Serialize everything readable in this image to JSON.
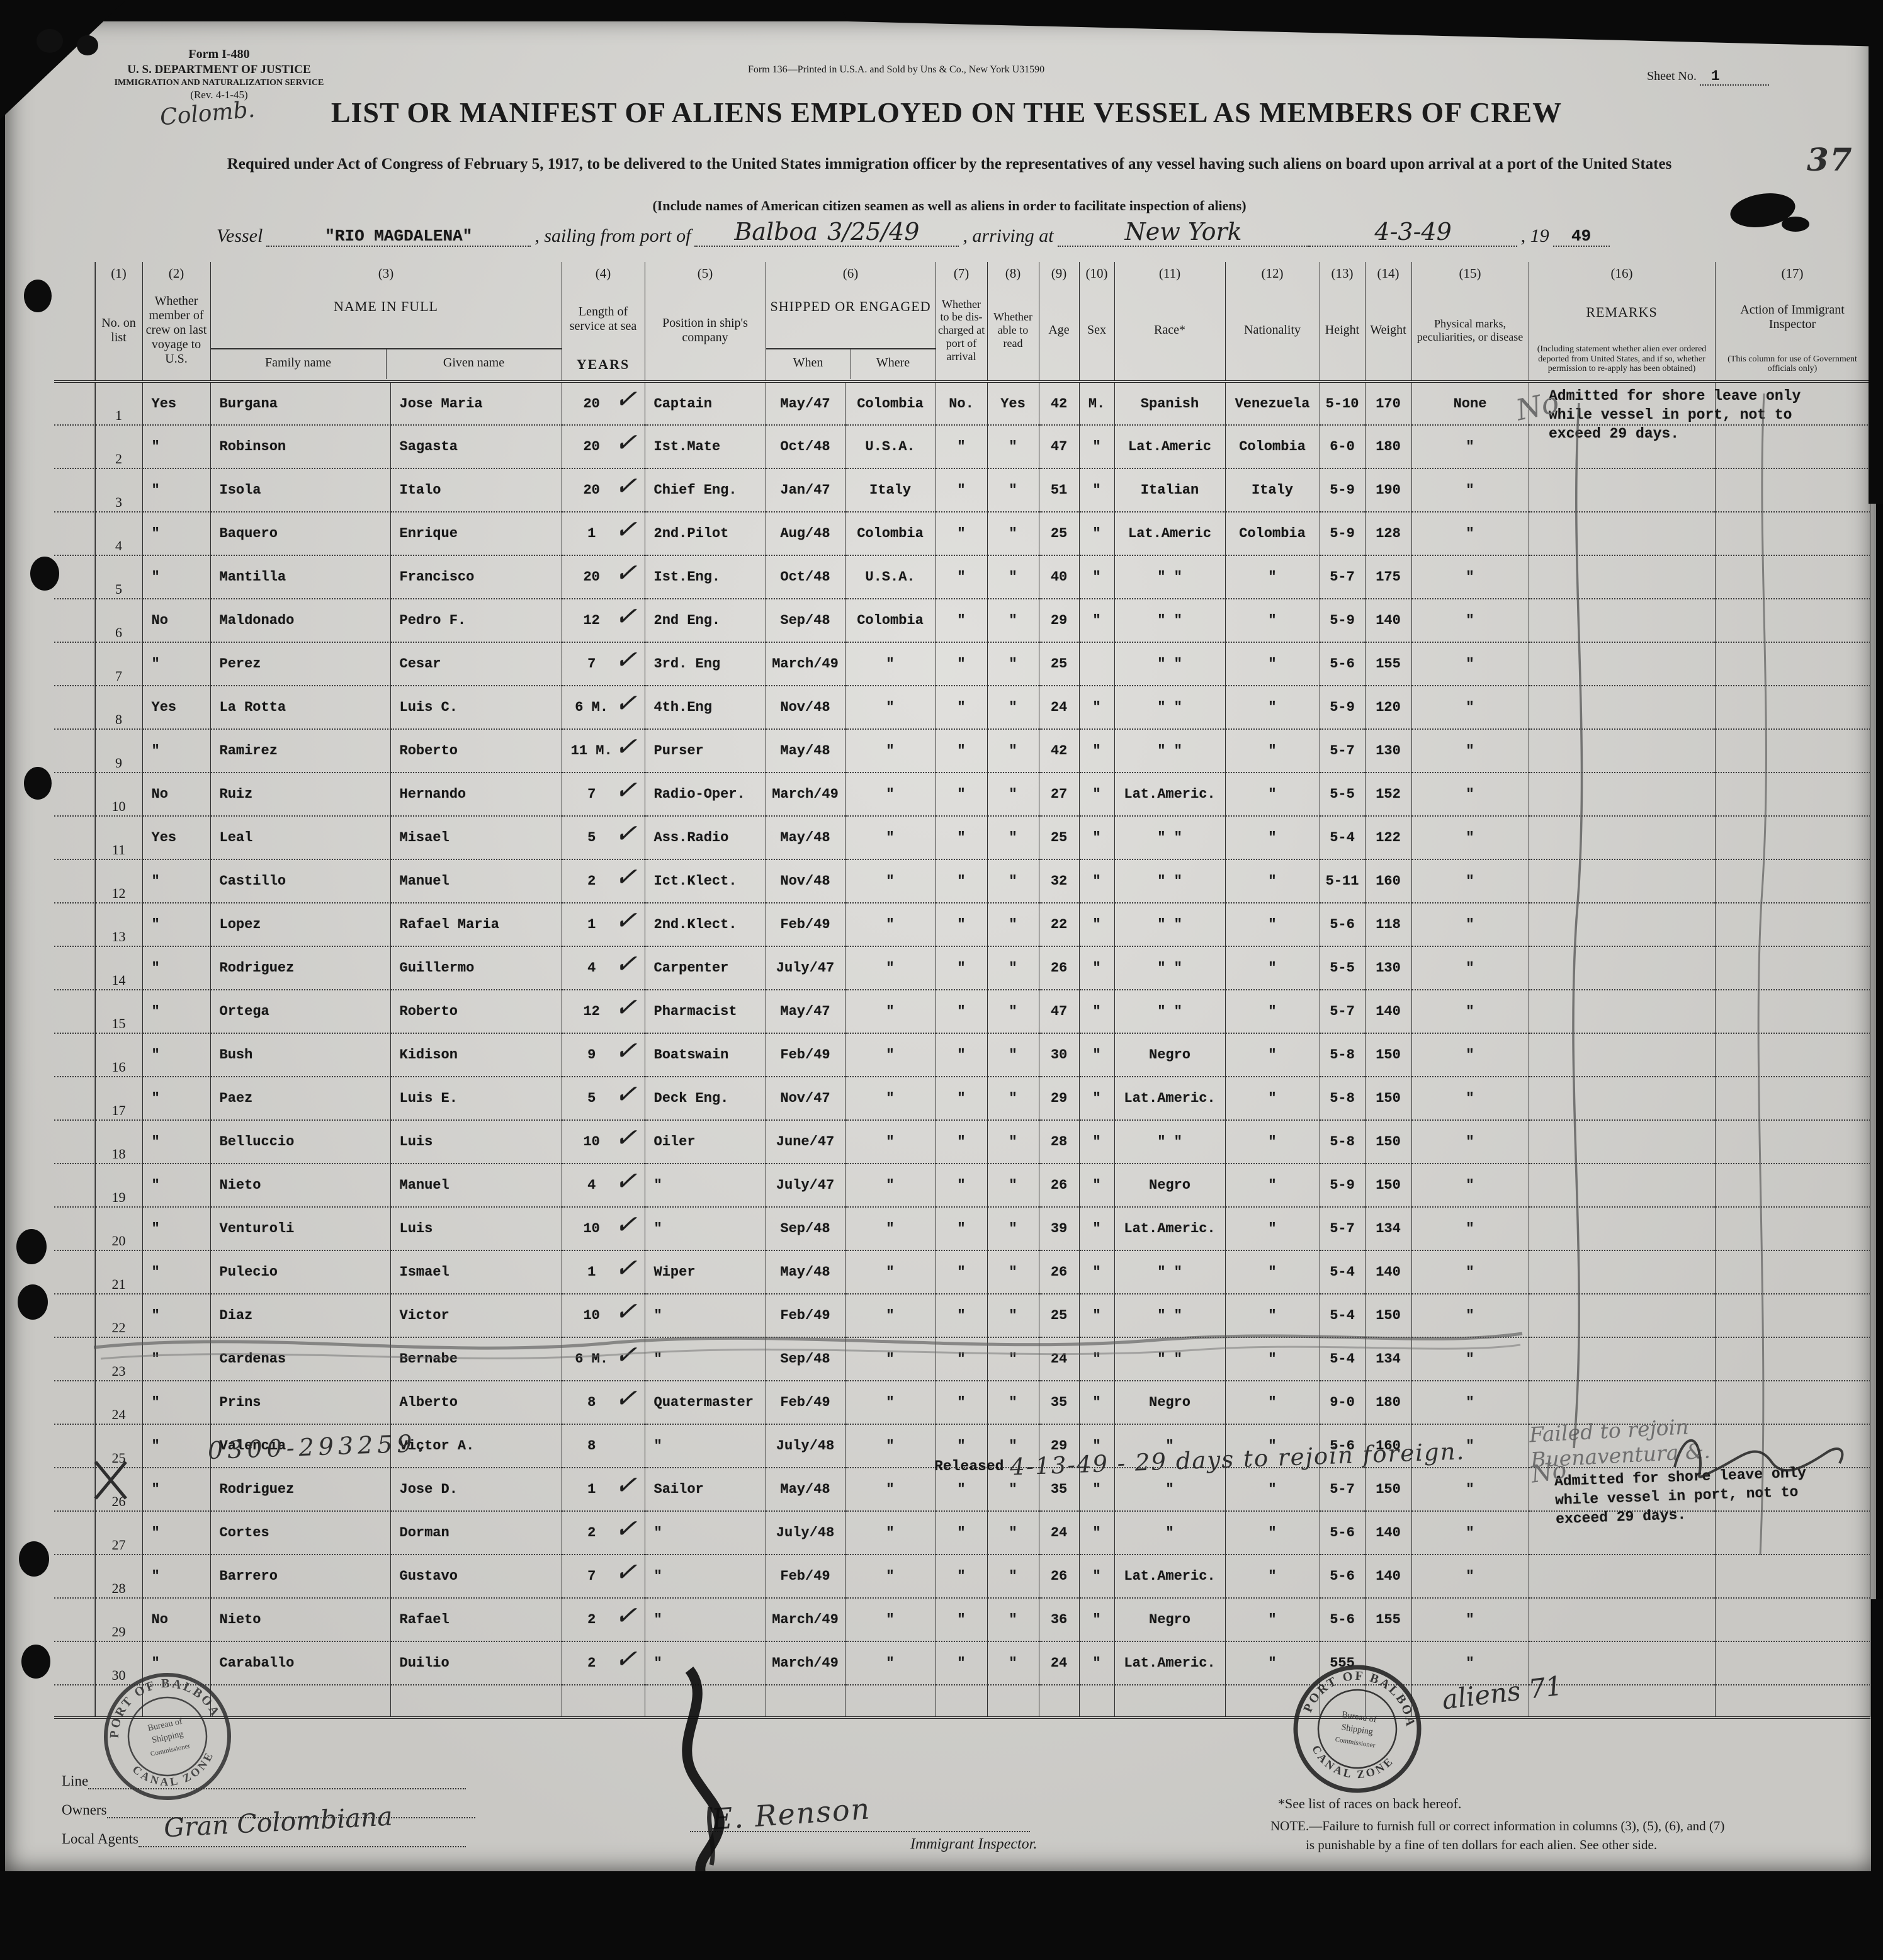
{
  "form": {
    "form_no": "Form I-480",
    "agency_line1": "U. S. DEPARTMENT OF JUSTICE",
    "agency_line2": "IMMIGRATION AND NATURALIZATION SERVICE",
    "agency_line3": "(Rev. 4-1-45)",
    "printer_note": "Form 136—Printed in U.S.A. and Sold by Uns & Co., New York   U31590",
    "sheet_label": "Sheet No.",
    "sheet_value": "1",
    "page_number": "37",
    "title": "LIST OR MANIFEST OF ALIENS EMPLOYED ON THE VESSEL AS MEMBERS OF CREW",
    "subtitle": "Required under Act of Congress of February 5, 1917, to be delivered to the United States immigration officer by the representatives of any vessel having such aliens on board upon arrival at a port of the United States",
    "subtitle2": "(Include names of American citizen seamen as well as aliens in order to facilitate inspection of aliens)"
  },
  "vessel_line": {
    "vessel_label": "Vessel",
    "vessel_annotation": "Colomb.",
    "vessel_name": "\"RIO MAGDALENA\"",
    "sailing_label": ", sailing from port of",
    "sailing_port": "Balboa",
    "sailing_date": "3/25/49",
    "arriving_label": ", arriving at",
    "arrival_port": "New York",
    "arrival_date": "4-3-49",
    "year_prefix": ", 19",
    "year_value": "49"
  },
  "table": {
    "headers": {
      "c1": {
        "num": "(1)",
        "label": "No. on list"
      },
      "c2": {
        "num": "(2)",
        "label": "Whether member of crew on last voyage to U.S."
      },
      "c3": {
        "num": "(3)",
        "label": "NAME IN FULL",
        "sub1": "Family name",
        "sub2": "Given name"
      },
      "c4": {
        "num": "(4)",
        "label": "Length of service at sea",
        "sub": "YEARS"
      },
      "c5": {
        "num": "(5)",
        "label": "Position in ship's company"
      },
      "c6": {
        "num": "(6)",
        "label": "SHIPPED OR ENGAGED",
        "sub1": "When",
        "sub2": "Where"
      },
      "c7": {
        "num": "(7)",
        "label": "Whether to be dis- charged at port of arrival"
      },
      "c8": {
        "num": "(8)",
        "label": "Whether able to read"
      },
      "c9": {
        "num": "(9)",
        "label": "Age"
      },
      "c10": {
        "num": "(10)",
        "label": "Sex"
      },
      "c11": {
        "num": "(11)",
        "label": "Race*"
      },
      "c12": {
        "num": "(12)",
        "label": "Nationality"
      },
      "c13": {
        "num": "(13)",
        "label": "Height"
      },
      "c14": {
        "num": "(14)",
        "label": "Weight"
      },
      "c15": {
        "num": "(15)",
        "label": "Physical marks, peculiarities, or disease"
      },
      "c16": {
        "num": "(16)",
        "label": "REMARKS",
        "sublabel": "(Including statement whether alien ever ordered deported from United States, and if so, whether permission to re-apply has been obtained)"
      },
      "c17": {
        "num": "(17)",
        "label": "Action of Immigrant Inspector",
        "sublabel": "(This column for use of Government officials only)"
      }
    },
    "rows": [
      {
        "num": "1",
        "mem": "Yes",
        "fam": "Burgana",
        "giv": "Jose Maria",
        "svc": "20",
        "chk": "✓",
        "pos": "Captain",
        "when": "May/47",
        "where": "Colombia",
        "dis": "No.",
        "read": "Yes",
        "age": "42",
        "sex": "M.",
        "race": "Spanish",
        "nat": "Venezuela",
        "ht": "5-10",
        "wt": "170",
        "marks": "None"
      },
      {
        "num": "2",
        "mem": "\"",
        "fam": "Robinson",
        "giv": "Sagasta",
        "svc": "20",
        "chk": "✓",
        "pos": "Ist.Mate",
        "when": "Oct/48",
        "where": "U.S.A.",
        "dis": "\"",
        "read": "\"",
        "age": "47",
        "sex": "\"",
        "race": "Lat.Americ",
        "nat": "Colombia",
        "ht": "6-0",
        "wt": "180",
        "marks": "\""
      },
      {
        "num": "3",
        "mem": "\"",
        "fam": "Isola",
        "giv": "Italo",
        "svc": "20",
        "chk": "✓",
        "pos": "Chief Eng.",
        "when": "Jan/47",
        "where": "Italy",
        "dis": "\"",
        "read": "\"",
        "age": "51",
        "sex": "\"",
        "race": "Italian",
        "nat": "Italy",
        "ht": "5-9",
        "wt": "190",
        "marks": "\""
      },
      {
        "num": "4",
        "mem": "\"",
        "fam": "Baquero",
        "giv": "Enrique",
        "svc": "1",
        "chk": "✓",
        "pos": "2nd.Pilot",
        "when": "Aug/48",
        "where": "Colombia",
        "dis": "\"",
        "read": "\"",
        "age": "25",
        "sex": "\"",
        "race": "Lat.Americ",
        "nat": "Colombia",
        "ht": "5-9",
        "wt": "128",
        "marks": "\""
      },
      {
        "num": "5",
        "mem": "\"",
        "fam": "Mantilla",
        "giv": "Francisco",
        "svc": "20",
        "chk": "✓",
        "pos": "Ist.Eng.",
        "when": "Oct/48",
        "where": "U.S.A.",
        "dis": "\"",
        "read": "\"",
        "age": "40",
        "sex": "\"",
        "race": "\"  \"",
        "nat": "\"",
        "ht": "5-7",
        "wt": "175",
        "marks": "\""
      },
      {
        "num": "6",
        "mem": "No",
        "fam": "Maldonado",
        "giv": "Pedro F.",
        "svc": "12",
        "chk": "✓",
        "pos": "2nd Eng.",
        "when": "Sep/48",
        "where": "Colombia",
        "dis": "\"",
        "read": "\"",
        "age": "29",
        "sex": "\"",
        "race": "\"  \"",
        "nat": "\"",
        "ht": "5-9",
        "wt": "140",
        "marks": "\""
      },
      {
        "num": "7",
        "mem": "\"",
        "fam": "Perez",
        "giv": "Cesar",
        "svc": "7",
        "chk": "✓",
        "pos": "3rd. Eng",
        "when": "March/49",
        "where": "\"",
        "dis": "\"",
        "read": "\"",
        "age": "25",
        "sex": "",
        "race": "\"  \"",
        "nat": "\"",
        "ht": "5-6",
        "wt": "155",
        "marks": "\""
      },
      {
        "num": "8",
        "mem": "Yes",
        "fam": "La Rotta",
        "giv": "Luis C.",
        "svc": "6 M.",
        "chk": "✓",
        "pos": "4th.Eng",
        "when": "Nov/48",
        "where": "\"",
        "dis": "\"",
        "read": "\"",
        "age": "24",
        "sex": "\"",
        "race": "\"  \"",
        "nat": "\"",
        "ht": "5-9",
        "wt": "120",
        "marks": "\""
      },
      {
        "num": "9",
        "mem": "\"",
        "fam": "Ramirez",
        "giv": "Roberto",
        "svc": "11 M.",
        "chk": "✓",
        "pos": "Purser",
        "when": "May/48",
        "where": "\"",
        "dis": "\"",
        "read": "\"",
        "age": "42",
        "sex": "\"",
        "race": "\"  \"",
        "nat": "\"",
        "ht": "5-7",
        "wt": "130",
        "marks": "\""
      },
      {
        "num": "10",
        "mem": "No",
        "fam": "Ruiz",
        "giv": "Hernando",
        "svc": "7",
        "chk": "✓",
        "pos": "Radio-Oper.",
        "when": "March/49",
        "where": "\"",
        "dis": "\"",
        "read": "\"",
        "age": "27",
        "sex": "\"",
        "race": "Lat.Americ.",
        "nat": "\"",
        "ht": "5-5",
        "wt": "152",
        "marks": "\""
      },
      {
        "num": "11",
        "mem": "Yes",
        "fam": "Leal",
        "giv": "Misael",
        "svc": "5",
        "chk": "✓",
        "pos": "Ass.Radio",
        "when": "May/48",
        "where": "\"",
        "dis": "\"",
        "read": "\"",
        "age": "25",
        "sex": "\"",
        "race": "\"  \"",
        "nat": "\"",
        "ht": "5-4",
        "wt": "122",
        "marks": "\""
      },
      {
        "num": "12",
        "mem": "\"",
        "fam": "Castillo",
        "giv": "Manuel",
        "svc": "2",
        "chk": "✓",
        "pos": "Ict.Klect.",
        "when": "Nov/48",
        "where": "\"",
        "dis": "\"",
        "read": "\"",
        "age": "32",
        "sex": "\"",
        "race": "\"  \"",
        "nat": "\"",
        "ht": "5-11",
        "wt": "160",
        "marks": "\""
      },
      {
        "num": "13",
        "mem": "\"",
        "fam": "Lopez",
        "giv": "Rafael Maria",
        "svc": "1",
        "chk": "✓",
        "pos": "2nd.Klect.",
        "when": "Feb/49",
        "where": "\"",
        "dis": "\"",
        "read": "\"",
        "age": "22",
        "sex": "\"",
        "race": "\"  \"",
        "nat": "\"",
        "ht": "5-6",
        "wt": "118",
        "marks": "\""
      },
      {
        "num": "14",
        "mem": "\"",
        "fam": "Rodriguez",
        "giv": "Guillermo",
        "svc": "4",
        "chk": "✓",
        "pos": "Carpenter",
        "when": "July/47",
        "where": "\"",
        "dis": "\"",
        "read": "\"",
        "age": "26",
        "sex": "\"",
        "race": "\"  \"",
        "nat": "\"",
        "ht": "5-5",
        "wt": "130",
        "marks": "\""
      },
      {
        "num": "15",
        "mem": "\"",
        "fam": "Ortega",
        "giv": "Roberto",
        "svc": "12",
        "chk": "✓",
        "pos": "Pharmacist",
        "when": "May/47",
        "where": "\"",
        "dis": "\"",
        "read": "\"",
        "age": "47",
        "sex": "\"",
        "race": "\"  \"",
        "nat": "\"",
        "ht": "5-7",
        "wt": "140",
        "marks": "\""
      },
      {
        "num": "16",
        "mem": "\"",
        "fam": "Bush",
        "giv": "Kidison",
        "svc": "9",
        "chk": "✓",
        "pos": "Boatswain",
        "when": "Feb/49",
        "where": "\"",
        "dis": "\"",
        "read": "\"",
        "age": "30",
        "sex": "\"",
        "race": "Negro",
        "nat": "\"",
        "ht": "5-8",
        "wt": "150",
        "marks": "\""
      },
      {
        "num": "17",
        "mem": "\"",
        "fam": "Paez",
        "giv": "Luis E.",
        "svc": "5",
        "chk": "✓",
        "pos": "Deck Eng.",
        "when": "Nov/47",
        "where": "\"",
        "dis": "\"",
        "read": "\"",
        "age": "29",
        "sex": "\"",
        "race": "Lat.Americ.",
        "nat": "\"",
        "ht": "5-8",
        "wt": "150",
        "marks": "\""
      },
      {
        "num": "18",
        "mem": "\"",
        "fam": "Belluccio",
        "giv": "Luis",
        "svc": "10",
        "chk": "✓",
        "pos": "Oiler",
        "when": "June/47",
        "where": "\"",
        "dis": "\"",
        "read": "\"",
        "age": "28",
        "sex": "\"",
        "race": "\"  \"",
        "nat": "\"",
        "ht": "5-8",
        "wt": "150",
        "marks": "\""
      },
      {
        "num": "19",
        "mem": "\"",
        "fam": "Nieto",
        "giv": "Manuel",
        "svc": "4",
        "chk": "✓",
        "pos": "\"",
        "when": "July/47",
        "where": "\"",
        "dis": "\"",
        "read": "\"",
        "age": "26",
        "sex": "\"",
        "race": "Negro",
        "nat": "\"",
        "ht": "5-9",
        "wt": "150",
        "marks": "\""
      },
      {
        "num": "20",
        "mem": "\"",
        "fam": "Venturoli",
        "giv": "Luis",
        "svc": "10",
        "chk": "✓",
        "pos": "\"",
        "when": "Sep/48",
        "where": "\"",
        "dis": "\"",
        "read": "\"",
        "age": "39",
        "sex": "\"",
        "race": "Lat.Americ.",
        "nat": "\"",
        "ht": "5-7",
        "wt": "134",
        "marks": "\""
      },
      {
        "num": "21",
        "mem": "\"",
        "fam": "Pulecio",
        "giv": "Ismael",
        "svc": "1",
        "chk": "✓",
        "pos": "Wiper",
        "when": "May/48",
        "where": "\"",
        "dis": "\"",
        "read": "\"",
        "age": "26",
        "sex": "\"",
        "race": "\"  \"",
        "nat": "\"",
        "ht": "5-4",
        "wt": "140",
        "marks": "\""
      },
      {
        "num": "22",
        "mem": "\"",
        "fam": "Diaz",
        "giv": "Victor",
        "svc": "10",
        "chk": "✓",
        "pos": "\"",
        "when": "Feb/49",
        "where": "\"",
        "dis": "\"",
        "read": "\"",
        "age": "25",
        "sex": "\"",
        "race": "\"  \"",
        "nat": "\"",
        "ht": "5-4",
        "wt": "150",
        "marks": "\""
      },
      {
        "num": "23",
        "mem": "\"",
        "fam": "Cardenas",
        "giv": "Bernabe",
        "svc": "6 M.",
        "chk": "✓",
        "pos": "\"",
        "when": "Sep/48",
        "where": "\"",
        "dis": "\"",
        "read": "\"",
        "age": "24",
        "sex": "\"",
        "race": "\"  \"",
        "nat": "\"",
        "ht": "5-4",
        "wt": "134",
        "marks": "\""
      },
      {
        "num": "24",
        "mem": "\"",
        "fam": "Prins",
        "giv": "Alberto",
        "svc": "8",
        "chk": "✓",
        "pos": "Quatermaster",
        "when": "Feb/49",
        "where": "\"",
        "dis": "\"",
        "read": "\"",
        "age": "35",
        "sex": "\"",
        "race": "Negro",
        "nat": "\"",
        "ht": "9-0",
        "wt": "180",
        "marks": "\""
      },
      {
        "num": "25",
        "mem": "\"",
        "fam": "Valencia",
        "giv": "Victor A.",
        "svc": "8",
        "chk": "",
        "pos": "\"",
        "when": "July/48",
        "where": "\"",
        "dis": "\"",
        "read": "\"",
        "age": "29",
        "sex": "\"",
        "race": "\"",
        "nat": "\"",
        "ht": "5-6",
        "wt": "160",
        "marks": "\"",
        "struck": true
      },
      {
        "num": "26",
        "mem": "\"",
        "fam": "Rodriguez",
        "giv": "Jose D.",
        "svc": "1",
        "chk": "✓",
        "pos": "Sailor",
        "when": "May/48",
        "where": "\"",
        "dis": "\"",
        "read": "\"",
        "age": "35",
        "sex": "\"",
        "race": "\"",
        "nat": "\"",
        "ht": "5-7",
        "wt": "150",
        "marks": "\"",
        "xnum": true
      },
      {
        "num": "27",
        "mem": "\"",
        "fam": "Cortes",
        "giv": "Dorman",
        "svc": "2",
        "chk": "✓",
        "pos": "\"",
        "when": "July/48",
        "where": "\"",
        "dis": "\"",
        "read": "\"",
        "age": "24",
        "sex": "\"",
        "race": "\"",
        "nat": "\"",
        "ht": "5-6",
        "wt": "140",
        "marks": "\""
      },
      {
        "num": "28",
        "mem": "\"",
        "fam": "Barrero",
        "giv": "Gustavo",
        "svc": "7",
        "chk": "✓",
        "pos": "\"",
        "when": "Feb/49",
        "where": "\"",
        "dis": "\"",
        "read": "\"",
        "age": "26",
        "sex": "\"",
        "race": "Lat.Americ.",
        "nat": "\"",
        "ht": "5-6",
        "wt": "140",
        "marks": "\""
      },
      {
        "num": "29",
        "mem": "No",
        "fam": "Nieto",
        "giv": "Rafael",
        "svc": "2",
        "chk": "✓",
        "pos": "\"",
        "when": "March/49",
        "where": "\"",
        "dis": "\"",
        "read": "\"",
        "age": "36",
        "sex": "\"",
        "race": "Negro",
        "nat": "\"",
        "ht": "5-6",
        "wt": "155",
        "marks": "\""
      },
      {
        "num": "30",
        "mem": "\"",
        "fam": "Caraballo",
        "giv": "Duilio",
        "svc": "2",
        "chk": "✓",
        "pos": "\"",
        "when": "March/49",
        "where": "\"",
        "dis": "\"",
        "read": "\"",
        "age": "24",
        "sex": "\"",
        "race": "Lat.Americ.",
        "nat": "\"",
        "ht": "555",
        "wt": "",
        "marks": "\""
      }
    ]
  },
  "annotations": {
    "remarks_row1": "Admitted for shore leave only while vessel in port, not to exceed 29 days.",
    "no_mark_top": "No",
    "failed_note_line1": "Failed to rejoin",
    "failed_note_line2": "Buenaventura &.",
    "released_typed": "Released",
    "released_hand": "4-13-49 - 29 days to rejoin foreign.",
    "crew_number": "0300-293259.",
    "remarks_row26": "Admitted for shore leave only while vessel in port, not to exceed 29 days.",
    "no_mark_bottom": "No",
    "aliens_note": "aliens 71"
  },
  "stamps": {
    "arc_top": "PORT OF BALBOA",
    "arc_bottom": "CANAL ZONE",
    "center_line1": "Bureau of",
    "center_line2": "Shipping",
    "center_line3": "Commissioner"
  },
  "footer": {
    "line_label": "Line",
    "owners_label": "Owners",
    "agents_label": "Local Agents",
    "agents_value": "Gran Colombiana",
    "inspector_signature": "E. Renson",
    "inspector_label": "Immigrant Inspector.",
    "races_note": "*See list of races on back hereof.",
    "note_line1": "NOTE.—Failure to furnish full or correct information in columns (3), (5), (6), and (7)",
    "note_line2": "is punishable by a fine of ten dollars for each alien.   See other side."
  }
}
